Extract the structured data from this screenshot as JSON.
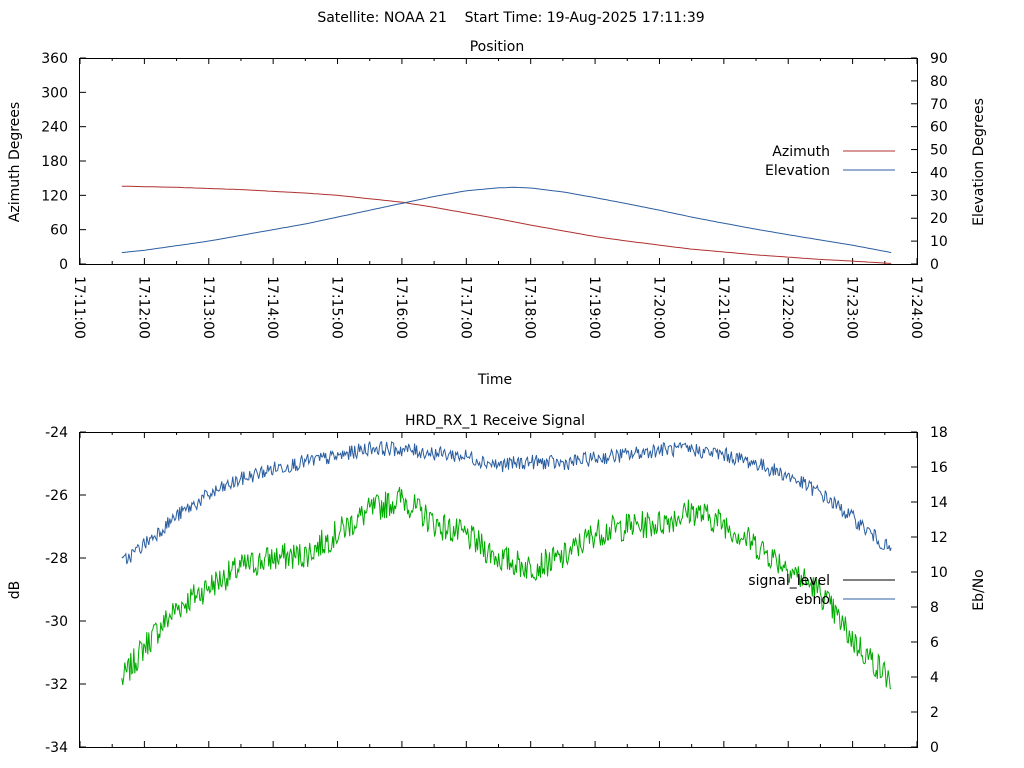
{
  "figure_title": "Satellite: NOAA 21    Start Time: 19-Aug-2025 17:11:39",
  "chart_data": [
    {
      "type": "line",
      "title": "Position",
      "xlabel": "Time",
      "ylabel": "Azimuth Degrees",
      "y2label": "Elevation Degrees",
      "x_ticks": [
        "17:11:00",
        "17:12:00",
        "17:13:00",
        "17:14:00",
        "17:15:00",
        "17:16:00",
        "17:17:00",
        "17:18:00",
        "17:19:00",
        "17:20:00",
        "17:21:00",
        "17:22:00",
        "17:23:00",
        "17:24:00"
      ],
      "xlim": [
        "17:11:00",
        "17:24:00"
      ],
      "ylim": [
        0,
        360
      ],
      "y2lim": [
        0,
        90
      ],
      "y_ticks": [
        0,
        60,
        120,
        180,
        240,
        300,
        360
      ],
      "y2_ticks": [
        0,
        10,
        20,
        30,
        40,
        50,
        60,
        70,
        80,
        90
      ],
      "legend_position": "right",
      "series": [
        {
          "name": "Azimuth",
          "axis": "left",
          "color": "#b03030",
          "x": [
            "17:11:39",
            "17:12:30",
            "17:13:30",
            "17:14:30",
            "17:15:00",
            "17:15:30",
            "17:16:00",
            "17:16:30",
            "17:17:00",
            "17:17:30",
            "17:18:00",
            "17:18:30",
            "17:19:00",
            "17:19:30",
            "17:20:00",
            "17:20:30",
            "17:21:00",
            "17:21:30",
            "17:22:00",
            "17:22:30",
            "17:23:00",
            "17:23:36"
          ],
          "values": [
            136,
            134,
            130,
            124,
            120,
            114,
            108,
            99,
            89,
            79,
            68,
            58,
            48,
            40,
            33,
            26,
            21,
            16,
            12,
            8,
            5,
            1
          ]
        },
        {
          "name": "Elevation",
          "axis": "right",
          "color": "#2c5fa0",
          "x": [
            "17:11:39",
            "17:12:00",
            "17:12:30",
            "17:13:00",
            "17:13:30",
            "17:14:00",
            "17:14:30",
            "17:15:00",
            "17:15:30",
            "17:16:00",
            "17:16:30",
            "17:17:00",
            "17:17:30",
            "17:17:45",
            "17:18:00",
            "17:18:30",
            "17:19:00",
            "17:19:30",
            "17:20:00",
            "17:20:30",
            "17:21:00",
            "17:21:30",
            "17:22:00",
            "17:22:30",
            "17:23:00",
            "17:23:36"
          ],
          "values": [
            5,
            6,
            8,
            10,
            12.5,
            15,
            17.5,
            20.5,
            23.5,
            26.5,
            29.5,
            32,
            33.3,
            33.5,
            33.2,
            31.5,
            29,
            26.3,
            23.5,
            20.5,
            17.8,
            15.2,
            12.8,
            10.5,
            8.2,
            5
          ]
        }
      ]
    },
    {
      "type": "line",
      "title": "HRD_RX_1 Receive Signal",
      "xlabel": "",
      "ylabel": "dB",
      "y2label": "Eb/No",
      "x_range": [
        "17:11:39",
        "17:23:36"
      ],
      "ylim": [
        -34,
        -24
      ],
      "y2lim": [
        0,
        18
      ],
      "y_ticks": [
        -34,
        -32,
        -30,
        -28,
        -26,
        -24
      ],
      "y2_ticks": [
        0,
        2,
        4,
        6,
        8,
        10,
        12,
        14,
        16,
        18
      ],
      "legend_position": "right",
      "series": [
        {
          "name": "signal_level",
          "axis": "left",
          "color": "#00aa00",
          "x": [
            "17:11:39",
            "17:12:00",
            "17:12:30",
            "17:13:00",
            "17:13:30",
            "17:14:00",
            "17:14:30",
            "17:15:00",
            "17:15:30",
            "17:16:00",
            "17:16:30",
            "17:17:00",
            "17:17:30",
            "17:18:00",
            "17:18:30",
            "17:19:00",
            "17:19:30",
            "17:20:00",
            "17:20:30",
            "17:21:00",
            "17:21:30",
            "17:22:00",
            "17:22:30",
            "17:23:00",
            "17:23:36"
          ],
          "values": [
            -31.9,
            -30.8,
            -29.6,
            -28.9,
            -28.3,
            -28.0,
            -27.9,
            -27.2,
            -26.5,
            -26.1,
            -26.9,
            -27.3,
            -28.0,
            -28.3,
            -28.0,
            -27.2,
            -27.0,
            -26.9,
            -26.5,
            -26.9,
            -27.6,
            -28.3,
            -29.1,
            -30.6,
            -31.9
          ]
        },
        {
          "name": "ebno",
          "axis": "right",
          "color": "#2c5fa0",
          "x": [
            "17:11:39",
            "17:12:00",
            "17:12:30",
            "17:13:00",
            "17:13:30",
            "17:14:00",
            "17:14:30",
            "17:15:00",
            "17:15:30",
            "17:16:00",
            "17:16:30",
            "17:17:00",
            "17:17:30",
            "17:18:00",
            "17:18:30",
            "17:19:00",
            "17:19:30",
            "17:20:00",
            "17:20:30",
            "17:21:00",
            "17:21:30",
            "17:22:00",
            "17:22:30",
            "17:23:00",
            "17:23:36"
          ],
          "values": [
            10.5,
            11.6,
            13.2,
            14.4,
            15.3,
            15.9,
            16.3,
            16.6,
            17.1,
            17.0,
            16.8,
            16.6,
            16.1,
            16.3,
            16.2,
            16.5,
            16.7,
            17.0,
            17.0,
            16.7,
            16.2,
            15.5,
            14.5,
            13.1,
            11.2
          ]
        }
      ]
    }
  ]
}
